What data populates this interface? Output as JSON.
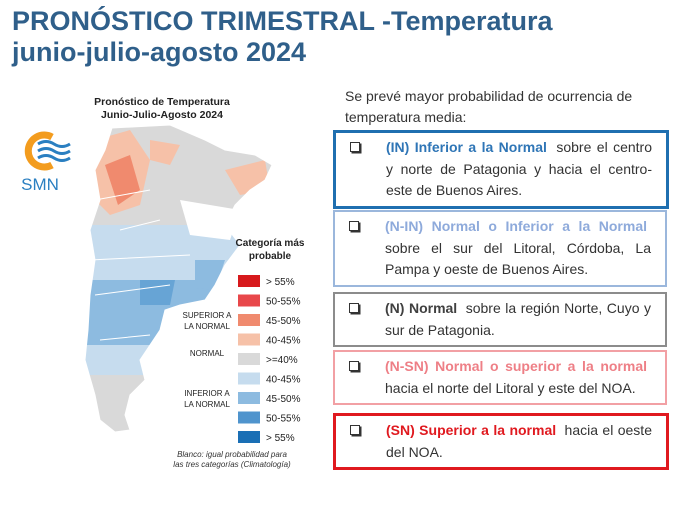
{
  "header": {
    "title_line1": "PRONÓSTICO TRIMESTRAL -Temperatura",
    "title_line2": "junio-julio-agosto 2024"
  },
  "logo": "SMN",
  "map": {
    "title_line1": "Pronóstico de Temperatura",
    "title_line2": "Junio-Julio-Agosto 2024",
    "note_line1": "Blanco: igual probabilidad para",
    "note_line2": "las tres categorías (Climatología)"
  },
  "legend": {
    "title_line1": "Categoría más",
    "title_line2": "probable",
    "groups": [
      [
        "SUPERIOR A",
        "LA NORMAL"
      ],
      [
        "NORMAL"
      ],
      [
        "INFERIOR A",
        "LA NORMAL"
      ]
    ],
    "items": [
      {
        "label": "> 55%",
        "color": "#d7191c"
      },
      {
        "label": "50-55%",
        "color": "#e8474a"
      },
      {
        "label": "45-50%",
        "color": "#f08a6e"
      },
      {
        "label": "40-45%",
        "color": "#f6c1a8"
      },
      {
        "label": ">=40%",
        "color": "#d9d9d9"
      },
      {
        "label": "40-45%",
        "color": "#c6dcee"
      },
      {
        "label": "45-50%",
        "color": "#8dbbe0"
      },
      {
        "label": "50-55%",
        "color": "#4f94cd"
      },
      {
        "label": "> 55%",
        "color": "#1a6fb5"
      }
    ]
  },
  "intro": "Se prevé mayor probabilidad de ocurrencia de temperatura media:",
  "boxes": [
    {
      "code": "(IN) Inferior a la Normal",
      "text": "sobre el centro y norte de Patagonia y hacia el centro-este de Buenos Aires.",
      "border": "#1f6fb0",
      "color": "#2e75b6"
    },
    {
      "code": "(N-IN) Normal o Inferior a la Normal",
      "text": "sobre el sur del Litoral, Córdoba, La Pampa y oeste de Buenos Aires.",
      "border": "#9bb7dc",
      "color": "#8eaadb"
    },
    {
      "code": "(N) Normal",
      "text": "sobre la región Norte, Cuyo y sur de Patagonia.",
      "border": "#8c8c8c",
      "color": "#404040"
    },
    {
      "code": "(N-SN) Normal o superior a la normal",
      "text": "hacia el norte del Litoral y este del NOA.",
      "border": "#f2a0a4",
      "color": "#ee7f86"
    },
    {
      "code": "(SN) Superior a la normal",
      "text": "hacia el oeste del NOA.",
      "border": "#e0191f",
      "color": "#e0191f"
    }
  ]
}
